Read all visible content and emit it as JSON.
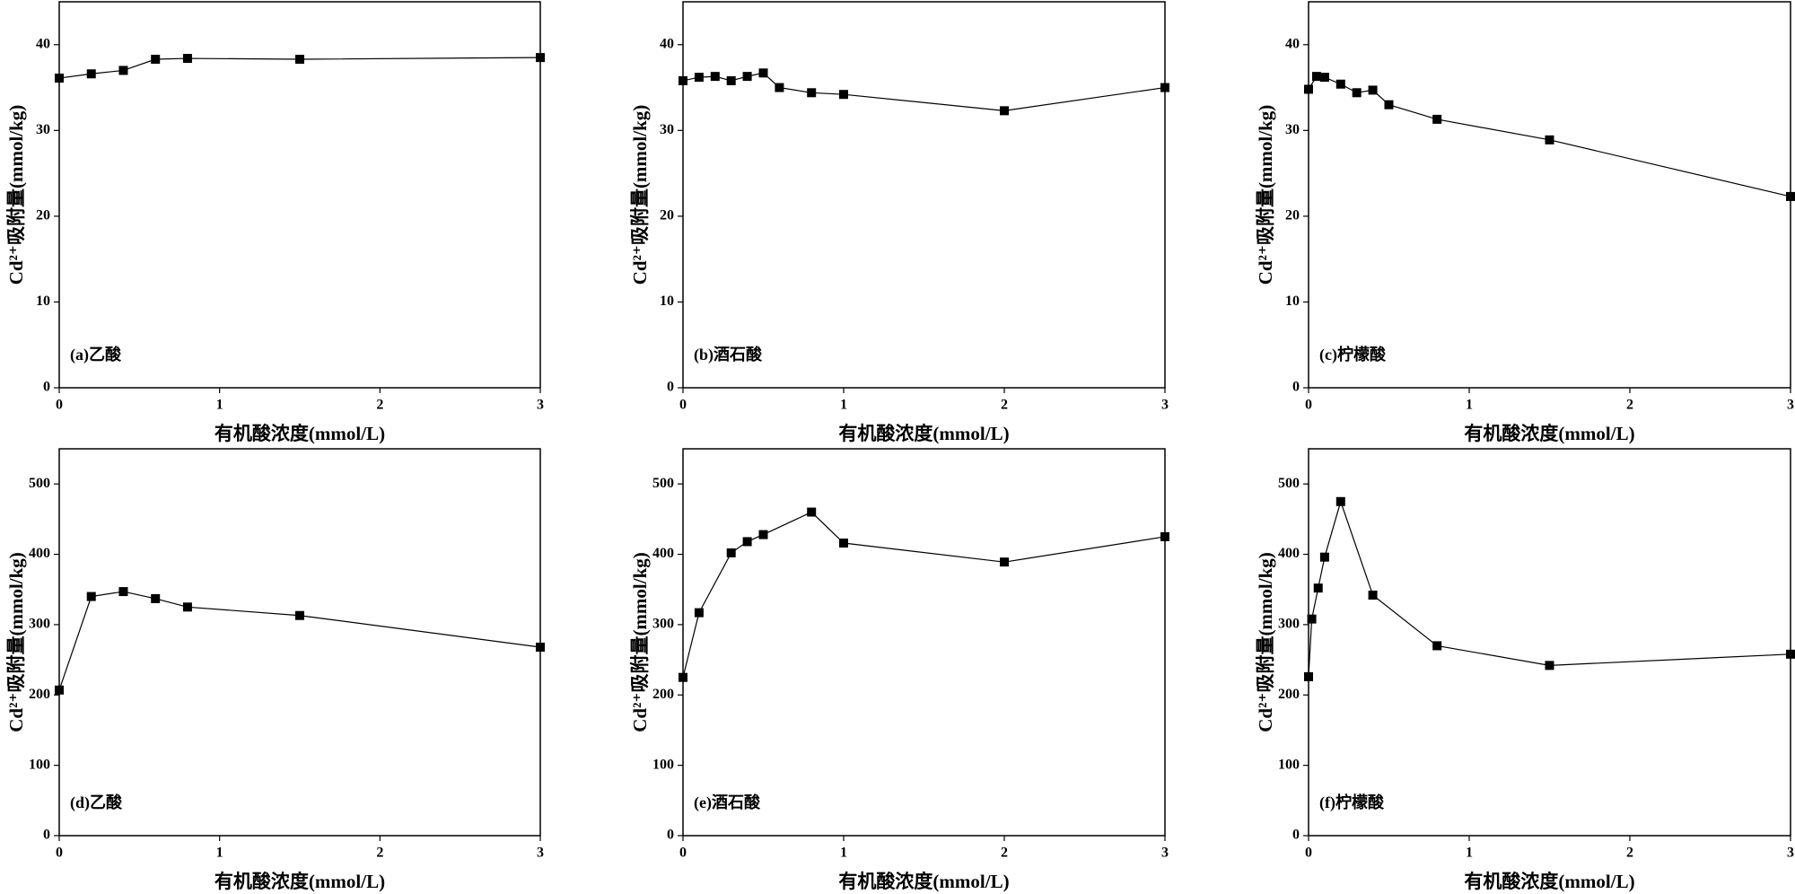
{
  "chart_data": [
    {
      "type": "line",
      "color": "#000000",
      "panel_label": "(a)乙酸",
      "x_label": "有机酸浓度(mmol/L)",
      "y_label": "Cd²⁺吸附量(mmol/kg)",
      "x": [
        0,
        0.2,
        0.4,
        0.6,
        0.8,
        1.5,
        3
      ],
      "values": [
        36.1,
        36.6,
        37.0,
        38.3,
        38.4,
        38.3,
        38.5
      ],
      "xlim": [
        0,
        3
      ],
      "ylim": [
        0,
        45
      ],
      "xticks": [
        0,
        1,
        2,
        3
      ],
      "yticks": [
        0,
        10,
        20,
        30,
        40
      ]
    },
    {
      "type": "line",
      "color": "#000000",
      "panel_label": "(b)酒石酸",
      "x_label": "有机酸浓度(mmol/L)",
      "y_label": "Cd²⁺吸附量(mmol/kg)",
      "x": [
        0,
        0.1,
        0.2,
        0.3,
        0.4,
        0.5,
        0.6,
        0.8,
        1,
        2,
        3
      ],
      "values": [
        35.8,
        36.2,
        36.3,
        35.8,
        36.3,
        36.7,
        35.0,
        34.4,
        34.2,
        32.3,
        35.0
      ],
      "xlim": [
        0,
        3
      ],
      "ylim": [
        0,
        45
      ],
      "xticks": [
        0,
        1,
        2,
        3
      ],
      "yticks": [
        0,
        10,
        20,
        30,
        40
      ]
    },
    {
      "type": "line",
      "color": "#000000",
      "panel_label": "(c)柠檬酸",
      "x_label": "有机酸浓度(mmol/L)",
      "y_label": "Cd²⁺吸附量(mmol/kg)",
      "x": [
        0,
        0.05,
        0.1,
        0.2,
        0.3,
        0.4,
        0.5,
        0.8,
        1.5,
        3
      ],
      "values": [
        34.8,
        36.3,
        36.2,
        35.4,
        34.4,
        34.7,
        33.0,
        31.3,
        28.9,
        22.3
      ],
      "xlim": [
        0,
        3
      ],
      "ylim": [
        0,
        45
      ],
      "xticks": [
        0,
        1,
        2,
        3
      ],
      "yticks": [
        0,
        10,
        20,
        30,
        40
      ]
    },
    {
      "type": "line",
      "color": "#000000",
      "panel_label": "(d)乙酸",
      "x_label": "有机酸浓度(mmol/L)",
      "y_label": "Cd²⁺吸附量(mmol/kg)",
      "x": [
        0,
        0.2,
        0.4,
        0.6,
        0.8,
        1.5,
        3
      ],
      "values": [
        207,
        340,
        347,
        337,
        325,
        313,
        268
      ],
      "xlim": [
        0,
        3
      ],
      "ylim": [
        0,
        550
      ],
      "xticks": [
        0,
        1,
        2,
        3
      ],
      "yticks": [
        0,
        100,
        200,
        300,
        400,
        500
      ]
    },
    {
      "type": "line",
      "color": "#000000",
      "panel_label": "(e)酒石酸",
      "x_label": "有机酸浓度(mmol/L)",
      "y_label": "Cd²⁺吸附量(mmol/kg)",
      "x": [
        0,
        0.1,
        0.3,
        0.4,
        0.5,
        0.8,
        1,
        2,
        3
      ],
      "values": [
        225,
        317,
        402,
        418,
        428,
        460,
        416,
        389,
        425
      ],
      "xlim": [
        0,
        3
      ],
      "ylim": [
        0,
        550
      ],
      "xticks": [
        0,
        1,
        2,
        3
      ],
      "yticks": [
        0,
        100,
        200,
        300,
        400,
        500
      ]
    },
    {
      "type": "line",
      "color": "#000000",
      "panel_label": "(f)柠檬酸",
      "x_label": "有机酸浓度(mmol/L)",
      "y_label": "Cd²⁺吸附量(mmol/kg)",
      "x": [
        0,
        0.02,
        0.06,
        0.1,
        0.2,
        0.4,
        0.8,
        1.5,
        3
      ],
      "values": [
        226,
        308,
        352,
        396,
        475,
        342,
        270,
        242,
        258
      ],
      "xlim": [
        0,
        3
      ],
      "ylim": [
        0,
        550
      ],
      "xticks": [
        0,
        1,
        2,
        3
      ],
      "yticks": [
        0,
        100,
        200,
        300,
        400,
        500
      ]
    }
  ]
}
